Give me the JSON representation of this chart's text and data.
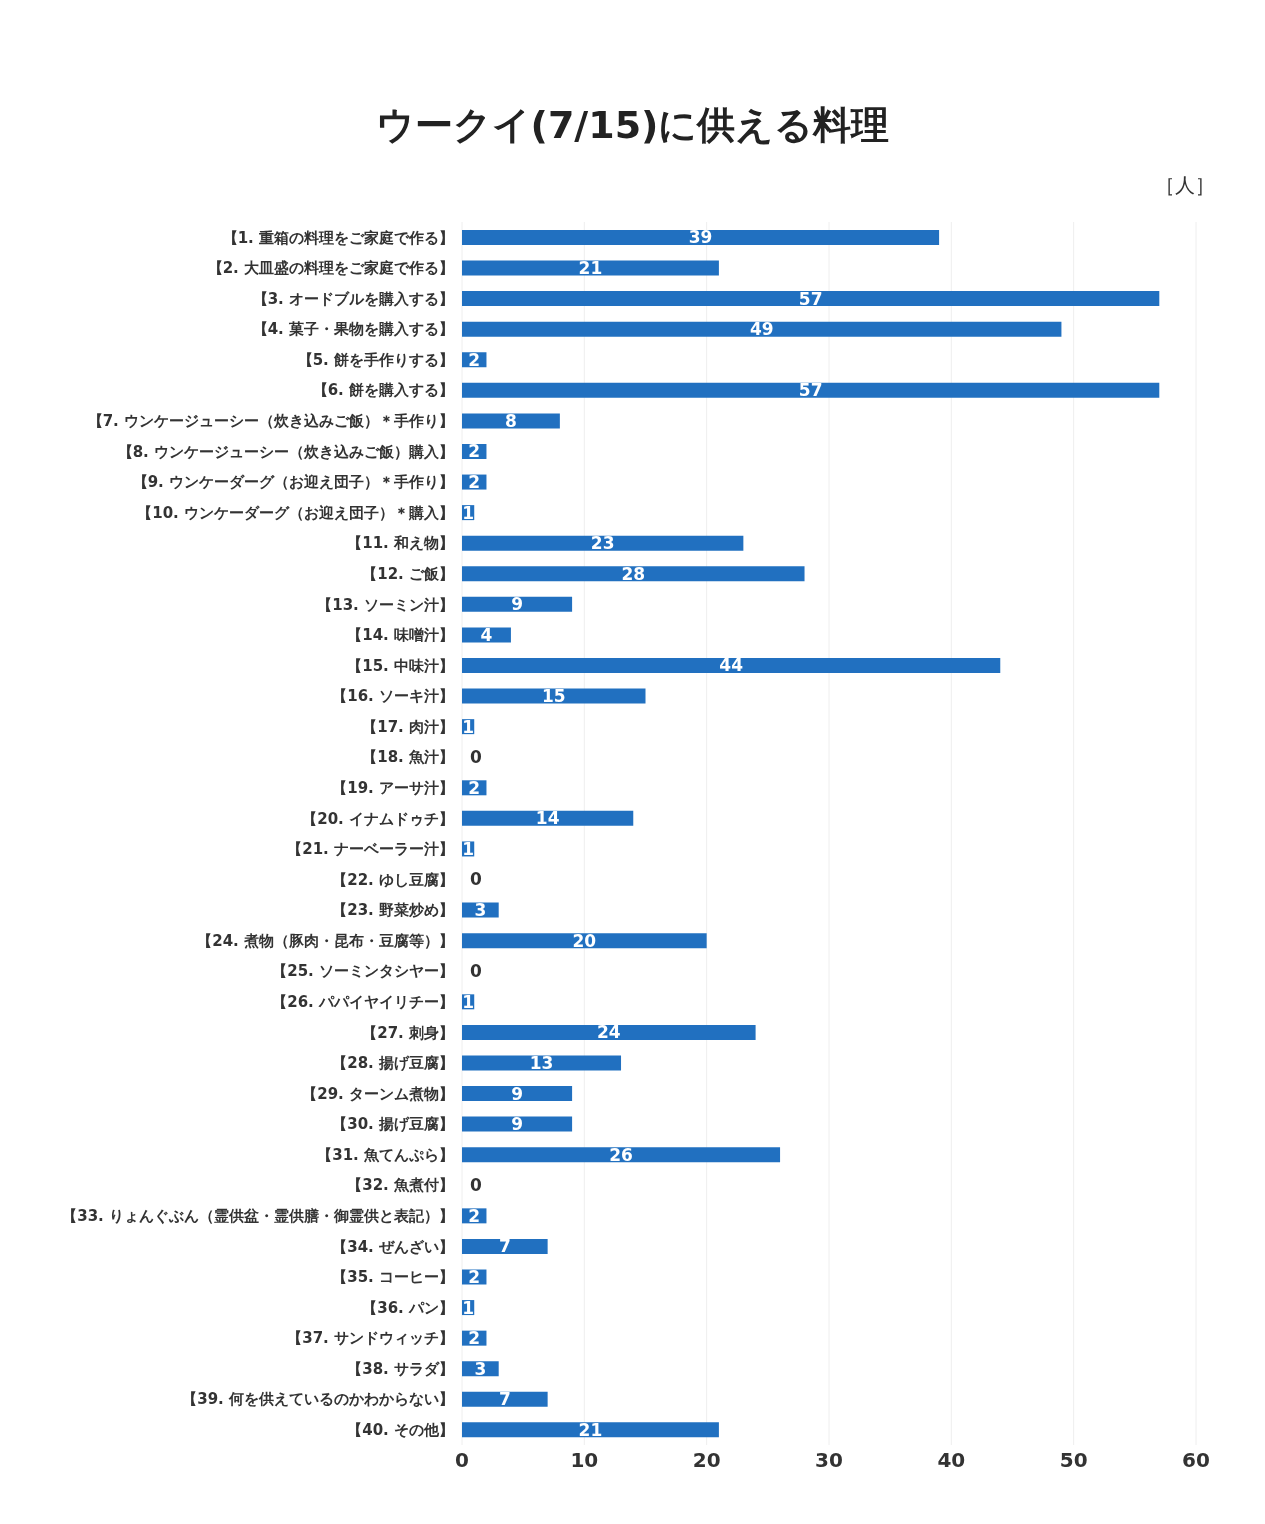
{
  "chart_data": {
    "type": "bar",
    "orientation": "horizontal",
    "title": "ウークイ(7/15)に供える料理",
    "annotations": [
      "［人］"
    ],
    "categories": [
      "【1. 重箱の料理をご家庭で作る】",
      "【2. 大皿盛の料理をご家庭で作る】",
      "【3. オードブルを購入する】",
      "【4. 菓子・果物を購入する】",
      "【5. 餅を手作りする】",
      "【6. 餅を購入する】",
      "【7. ウンケージューシー（炊き込みご飯）＊手作り】",
      "【8. ウンケージューシー（炊き込みご飯）購入】",
      "【9. ウンケーダーグ（お迎え団子）＊手作り】",
      "【10. ウンケーダーグ（お迎え団子）＊購入】",
      "【11. 和え物】",
      "【12. ご飯】",
      "【13. ソーミン汁】",
      "【14. 味噌汁】",
      "【15. 中味汁】",
      "【16. ソーキ汁】",
      "【17. 肉汁】",
      "【18. 魚汁】",
      "【19. アーサ汁】",
      "【20. イナムドゥチ】",
      "【21. ナーベーラー汁】",
      "【22. ゆし豆腐】",
      "【23. 野菜炒め】",
      "【24. 煮物（豚肉・昆布・豆腐等）】",
      "【25. ソーミンタシヤー】",
      "【26. パパイヤイリチー】",
      "【27. 刺身】",
      "【28. 揚げ豆腐】",
      "【29. ターンム煮物】",
      "【30. 揚げ豆腐】",
      "【31. 魚てんぷら】",
      "【32. 魚煮付】",
      "【33. りょんぐぶん（霊供盆・霊供膳・御霊供と表記）】",
      "【34. ぜんざい】",
      "【35. コーヒー】",
      "【36. パン】",
      "【37. サンドウィッチ】",
      "【38. サラダ】",
      "【39. 何を供えているのかわからない】",
      "【40. その他】"
    ],
    "values": [
      39,
      21,
      57,
      49,
      2,
      57,
      8,
      2,
      2,
      1,
      23,
      28,
      9,
      4,
      44,
      15,
      1,
      0,
      2,
      14,
      1,
      0,
      3,
      20,
      0,
      1,
      24,
      13,
      9,
      9,
      26,
      0,
      2,
      7,
      2,
      1,
      2,
      3,
      7,
      21
    ],
    "color": "#2170c0",
    "xlim": [
      0,
      60
    ],
    "xticks": [
      0,
      10,
      20,
      30,
      40,
      50,
      60
    ],
    "grid": "x",
    "data_labels": true,
    "legend": false
  }
}
